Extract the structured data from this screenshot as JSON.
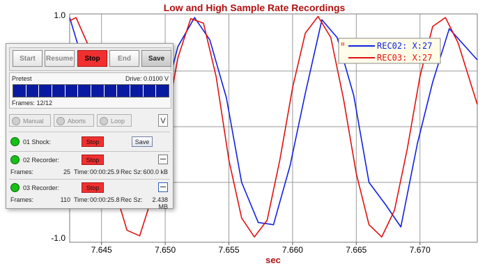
{
  "chart_data": {
    "type": "line",
    "title": "Low and High Sample Rate Recordings",
    "xlabel": "sec",
    "ylabel": "",
    "xlim": [
      7.6425,
      7.6745
    ],
    "ylim": [
      -1.0,
      1.0
    ],
    "x_ticks": [
      "7.645",
      "7.650",
      "7.655",
      "7.660",
      "7.665",
      "7.670"
    ],
    "x_tick_values": [
      7.645,
      7.65,
      7.655,
      7.66,
      7.665,
      7.67
    ],
    "y_ticks": [
      "1.0",
      "-1.0"
    ],
    "y_tick_values": [
      1.0,
      -1.0
    ],
    "grid": true,
    "legend_position": "top-right",
    "series": [
      {
        "name": "REC02: X:27",
        "color": "#1020e0",
        "x": [
          7.6425,
          7.6435,
          7.6447,
          7.646,
          7.6473,
          7.6485,
          7.6498,
          7.651,
          7.6523,
          7.6535,
          7.6548,
          7.656,
          7.6573,
          7.6585,
          7.6598,
          7.661,
          7.6623,
          7.6635,
          7.6648,
          7.666,
          7.6673,
          7.6685,
          7.6698,
          7.671,
          7.6723,
          7.6745
        ],
        "y": [
          0.98,
          0.6,
          0.0,
          -0.64,
          -0.7,
          -0.68,
          0.2,
          0.72,
          0.98,
          0.78,
          0.26,
          -0.5,
          -0.86,
          -0.88,
          -0.35,
          0.3,
          0.96,
          0.8,
          0.28,
          -0.5,
          -0.7,
          -0.9,
          -0.15,
          0.4,
          0.88,
          0.6
        ]
      },
      {
        "name": "REC03: X:27",
        "color": "#e01010",
        "x": [
          7.6425,
          7.643,
          7.644,
          7.645,
          7.646,
          7.647,
          7.648,
          7.649,
          7.65,
          7.651,
          7.652,
          7.653,
          7.654,
          7.655,
          7.656,
          7.657,
          7.658,
          7.659,
          7.66,
          7.661,
          7.662,
          7.663,
          7.664,
          7.665,
          7.666,
          7.667,
          7.668,
          7.669,
          7.67,
          7.671,
          7.672,
          7.673,
          7.6745
        ],
        "y": [
          0.95,
          0.98,
          0.72,
          0.1,
          -0.55,
          -0.93,
          -0.98,
          -0.62,
          0.0,
          0.62,
          0.97,
          0.93,
          0.45,
          -0.3,
          -0.82,
          -0.99,
          -0.84,
          -0.3,
          0.35,
          0.84,
          0.99,
          0.8,
          0.25,
          -0.42,
          -0.88,
          -0.99,
          -0.75,
          -0.2,
          0.45,
          0.9,
          0.98,
          0.75,
          0.2
        ]
      }
    ]
  },
  "panel": {
    "buttons": {
      "start": "Start",
      "resume": "Resume",
      "stop": "Stop",
      "end": "End",
      "save": "Save"
    },
    "pretest_label": "Pretest",
    "drive_label": "Drive: 0.0100 V",
    "frames_label": "Frames: 12/12",
    "progress": {
      "done": 12,
      "total": 12
    },
    "modes": {
      "manual": "Manual",
      "aborts": "Aborts",
      "loop": "Loop",
      "expand": "V"
    },
    "shock": {
      "label": "01 Shock:",
      "stop": "Stop",
      "save": "Save"
    },
    "recorders": [
      {
        "label": "02 Recorder:",
        "stop": "Stop",
        "frames_label": "Frames:",
        "frames": "25",
        "time_label": "Time:",
        "time": "00:00:25.9",
        "recsz_label": "Rec Sz:",
        "recsz": "600.0 kB"
      },
      {
        "label": "03 Recorder:",
        "stop": "Stop",
        "frames_label": "Frames:",
        "frames": "110",
        "time_label": "Time:",
        "time": "00:00:25.8",
        "recsz_label": "Rec Sz:",
        "recsz": "2.438 MB"
      }
    ]
  }
}
